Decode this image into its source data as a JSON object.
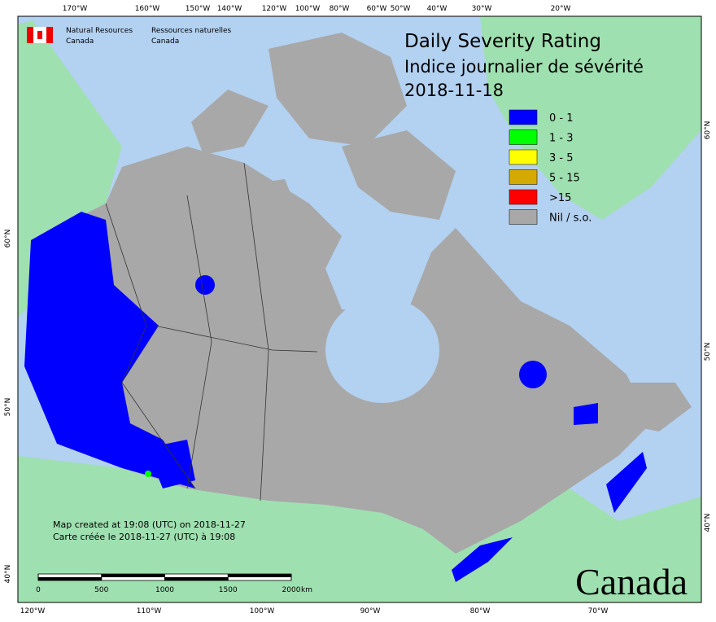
{
  "header": {
    "department_en": [
      "Natural Resources",
      "Canada"
    ],
    "department_fr": [
      "Ressources naturelles",
      "Canada"
    ]
  },
  "title": [
    "Daily Severity Rating",
    "Indice journalier de sévérité",
    "2018-11-18"
  ],
  "legend": [
    {
      "label": "0 - 1",
      "color": "#0000ff"
    },
    {
      "label": "1 - 3",
      "color": "#00ff00"
    },
    {
      "label": "3 - 5",
      "color": "#ffff00"
    },
    {
      "label": "5 - 15",
      "color": "#d4aa00"
    },
    {
      "label": ">15",
      "color": "#ff0000"
    },
    {
      "label": "Nil / s.o.",
      "color": "#a8a8a8"
    }
  ],
  "top_longitudes": [
    "170°W",
    "160°W",
    "150°W",
    "140°W",
    "120°W",
    "100°W",
    "80°W",
    "60°W",
    "50°W",
    "40°W",
    "30°W",
    "20°W"
  ],
  "bottom_longitudes": [
    "120°W",
    "110°W",
    "100°W",
    "90°W",
    "80°W",
    "70°W"
  ],
  "left_latitudes": [
    "60°N",
    "50°N",
    "40°N"
  ],
  "right_latitudes": [
    "60°N",
    "50°N",
    "40°N"
  ],
  "footer": [
    "Map created at 19:08 (UTC) on 2018-11-27",
    "Carte créée le 2018-11-27 (UTC) à 19:08"
  ],
  "scale": {
    "ticks": [
      0,
      500,
      1000,
      1500,
      2000
    ],
    "unit": "km"
  },
  "wordmark": "Canada"
}
